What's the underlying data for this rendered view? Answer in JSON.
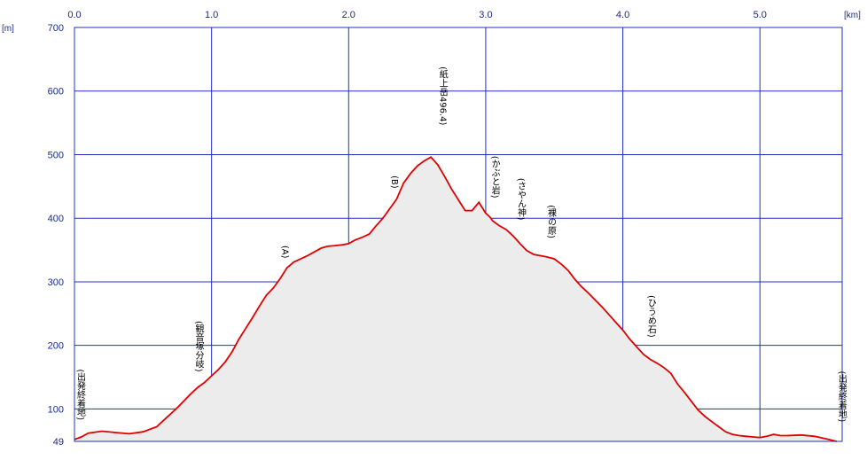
{
  "chart_data": {
    "type": "area",
    "title": "",
    "xlabel": "",
    "ylabel": "",
    "x_unit": "[km]",
    "y_unit": "[m]",
    "xlim": [
      0,
      5.6
    ],
    "ylim": [
      49,
      700
    ],
    "x_ticks": [
      "0.0",
      "1.0",
      "2.0",
      "3.0",
      "4.0",
      "5.0"
    ],
    "y_ticks": [
      "700",
      "600",
      "500",
      "400",
      "300",
      "200",
      "100",
      "49"
    ],
    "grid": true,
    "line_color": "#e00000",
    "grid_color": "#2030c0",
    "fill_color": "#ececec",
    "series": [
      {
        "x": [
          0.0,
          0.05,
          0.1,
          0.2,
          0.3,
          0.4,
          0.5,
          0.6,
          0.65,
          0.7,
          0.75,
          0.8,
          0.85,
          0.9,
          0.95,
          1.0,
          1.05,
          1.1,
          1.15,
          1.2,
          1.25,
          1.3,
          1.35,
          1.4,
          1.45,
          1.5,
          1.55,
          1.6,
          1.65,
          1.7,
          1.75,
          1.8,
          1.85,
          1.9,
          1.95,
          2.0,
          2.05,
          2.1,
          2.15,
          2.2,
          2.25,
          2.3,
          2.35,
          2.4,
          2.45,
          2.5,
          2.55,
          2.6,
          2.65,
          2.7,
          2.75,
          2.8,
          2.85,
          2.9,
          2.95,
          3.0,
          3.03,
          3.05,
          3.1,
          3.15,
          3.2,
          3.25,
          3.3,
          3.35,
          3.4,
          3.45,
          3.5,
          3.55,
          3.6,
          3.65,
          3.7,
          3.75,
          3.8,
          3.85,
          3.9,
          3.95,
          4.0,
          4.05,
          4.1,
          4.15,
          4.2,
          4.25,
          4.3,
          4.35,
          4.4,
          4.45,
          4.5,
          4.55,
          4.6,
          4.65,
          4.7,
          4.75,
          4.8,
          4.85,
          4.9,
          4.95,
          5.0,
          5.05,
          5.1,
          5.15,
          5.2,
          5.3,
          5.4,
          5.5,
          5.56
        ],
        "y": [
          52,
          56,
          62,
          65,
          63,
          61,
          64,
          72,
          82,
          92,
          102,
          113,
          124,
          134,
          142,
          152,
          162,
          174,
          190,
          210,
          227,
          244,
          262,
          279,
          290,
          305,
          322,
          331,
          336,
          341,
          347,
          353,
          356,
          357,
          358,
          360,
          366,
          370,
          375,
          388,
          400,
          415,
          430,
          455,
          470,
          482,
          490,
          496,
          484,
          466,
          446,
          429,
          412,
          412,
          425,
          408,
          402,
          396,
          388,
          382,
          372,
          360,
          349,
          343,
          341,
          339,
          336,
          328,
          318,
          304,
          292,
          282,
          271,
          260,
          248,
          236,
          224,
          210,
          198,
          186,
          178,
          172,
          165,
          156,
          139,
          126,
          112,
          98,
          88,
          80,
          72,
          64,
          60,
          58,
          57,
          56,
          55,
          57,
          60,
          58,
          58,
          59,
          57,
          52,
          49
        ]
      }
    ],
    "annotations": [
      {
        "text": "(出発終着地)",
        "x": 0.0
      },
      {
        "text": "(観音塚分岐)",
        "x": 0.87
      },
      {
        "text": "(A)",
        "x": 1.5
      },
      {
        "text": "(B)",
        "x": 2.3
      },
      {
        "text": "(紙上岳496.4)",
        "x": 2.65
      },
      {
        "text": "(かぶと岩)",
        "x": 3.03
      },
      {
        "text": "(さやん神)",
        "x": 3.22
      },
      {
        "text": "(裸の原)",
        "x": 3.44
      },
      {
        "text": "(ひうめ石)",
        "x": 4.17
      },
      {
        "text": "(出発終着地)",
        "x": 5.56
      }
    ]
  }
}
